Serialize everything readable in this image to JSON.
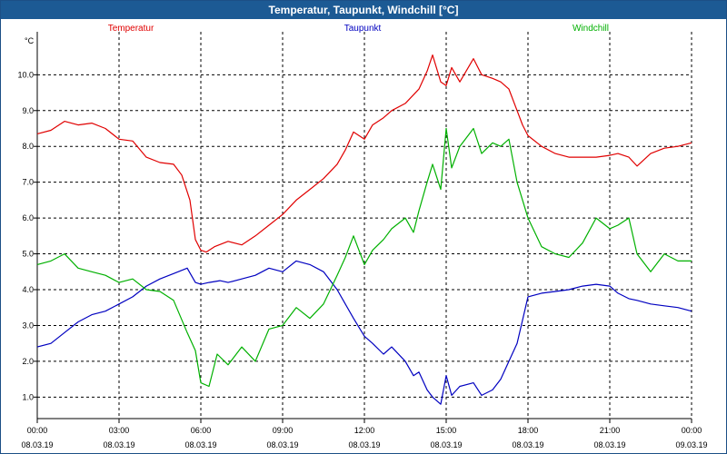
{
  "window": {
    "title": "Temperatur, Taupunkt, Windchill [°C]"
  },
  "chart_data": {
    "type": "line",
    "title": "Temperatur, Taupunkt, Windchill [°C]",
    "ylabel": "°C",
    "ylim": [
      0.4,
      11.2
    ],
    "xlim": [
      0,
      24
    ],
    "yticks": [
      "1.0",
      "2.0",
      "3.0",
      "4.0",
      "5.0",
      "6.0",
      "7.0",
      "8.0",
      "9.0",
      "10.0"
    ],
    "xticks": [
      {
        "time": "00:00",
        "date": "08.03.19"
      },
      {
        "time": "03:00",
        "date": "08.03.19"
      },
      {
        "time": "06:00",
        "date": "08.03.19"
      },
      {
        "time": "09:00",
        "date": "08.03.19"
      },
      {
        "time": "12:00",
        "date": "08.03.19"
      },
      {
        "time": "15:00",
        "date": "08.03.19"
      },
      {
        "time": "18:00",
        "date": "08.03.19"
      },
      {
        "time": "21:00",
        "date": "08.03.19"
      },
      {
        "time": "00:00",
        "date": "09.03.19"
      }
    ],
    "grid": true,
    "legend_position": "top",
    "series": [
      {
        "name": "Temperatur",
        "color": "#e00000",
        "x": [
          0,
          0.5,
          1,
          1.5,
          2,
          2.5,
          3,
          3.5,
          4,
          4.5,
          5,
          5.3,
          5.6,
          5.8,
          6,
          6.2,
          6.5,
          7,
          7.5,
          8,
          8.5,
          9,
          9.5,
          10,
          10.5,
          11,
          11.3,
          11.6,
          12,
          12.3,
          12.7,
          13,
          13.5,
          14,
          14.3,
          14.5,
          14.8,
          15,
          15.2,
          15.5,
          16,
          16.3,
          16.7,
          17,
          17.3,
          17.6,
          17.8,
          18,
          18.5,
          19,
          19.5,
          20,
          20.5,
          21,
          21.3,
          21.7,
          22,
          22.5,
          23,
          23.5,
          24
        ],
        "y": [
          8.35,
          8.45,
          8.7,
          8.6,
          8.65,
          8.5,
          8.2,
          8.15,
          7.7,
          7.55,
          7.5,
          7.2,
          6.5,
          5.4,
          5.1,
          5.05,
          5.2,
          5.35,
          5.25,
          5.5,
          5.8,
          6.1,
          6.5,
          6.8,
          7.1,
          7.5,
          7.9,
          8.4,
          8.2,
          8.6,
          8.8,
          9.0,
          9.2,
          9.6,
          10.1,
          10.55,
          9.8,
          9.7,
          10.2,
          9.8,
          10.45,
          10.0,
          9.9,
          9.8,
          9.6,
          9.0,
          8.6,
          8.3,
          8.0,
          7.8,
          7.7,
          7.7,
          7.7,
          7.75,
          7.8,
          7.7,
          7.45,
          7.8,
          7.95,
          8.0,
          8.1
        ]
      },
      {
        "name": "Taupunkt",
        "color": "#0000c0",
        "x": [
          0,
          0.5,
          1,
          1.5,
          2,
          2.5,
          3,
          3.5,
          4,
          4.5,
          5,
          5.5,
          5.8,
          6,
          6.3,
          6.7,
          7,
          7.5,
          8,
          8.5,
          9,
          9.5,
          10,
          10.5,
          11,
          11.3,
          11.6,
          12,
          12.3,
          12.7,
          13,
          13.5,
          13.8,
          14,
          14.3,
          14.5,
          14.8,
          15,
          15.2,
          15.5,
          16,
          16.3,
          16.7,
          17,
          17.3,
          17.6,
          18,
          18.5,
          19,
          19.5,
          20,
          20.5,
          21,
          21.3,
          21.7,
          22,
          22.5,
          23,
          23.5,
          24
        ],
        "y": [
          2.4,
          2.5,
          2.8,
          3.1,
          3.3,
          3.4,
          3.6,
          3.8,
          4.1,
          4.3,
          4.45,
          4.6,
          4.2,
          4.15,
          4.2,
          4.25,
          4.2,
          4.3,
          4.4,
          4.6,
          4.5,
          4.8,
          4.7,
          4.5,
          4.0,
          3.6,
          3.2,
          2.7,
          2.5,
          2.2,
          2.4,
          2.0,
          1.6,
          1.7,
          1.2,
          1.0,
          0.8,
          1.6,
          1.05,
          1.3,
          1.4,
          1.05,
          1.2,
          1.5,
          2.0,
          2.5,
          3.8,
          3.9,
          3.95,
          4.0,
          4.1,
          4.15,
          4.1,
          3.9,
          3.75,
          3.7,
          3.6,
          3.55,
          3.5,
          3.4
        ]
      },
      {
        "name": "Windchill",
        "color": "#00b000",
        "x": [
          0,
          0.5,
          1,
          1.5,
          2,
          2.5,
          3,
          3.5,
          4,
          4.5,
          5,
          5.5,
          5.8,
          6,
          6.3,
          6.6,
          7,
          7.5,
          8,
          8.5,
          9,
          9.5,
          10,
          10.5,
          11,
          11.3,
          11.6,
          12,
          12.3,
          12.7,
          13,
          13.5,
          13.8,
          14,
          14.3,
          14.5,
          14.8,
          15,
          15.2,
          15.5,
          16,
          16.3,
          16.7,
          17,
          17.3,
          17.6,
          18,
          18.5,
          19,
          19.5,
          20,
          20.5,
          21,
          21.3,
          21.7,
          22,
          22.5,
          23,
          23.5,
          24
        ],
        "y": [
          4.7,
          4.8,
          5.0,
          4.6,
          4.5,
          4.4,
          4.2,
          4.3,
          4.0,
          3.95,
          3.7,
          2.8,
          2.3,
          1.4,
          1.3,
          2.2,
          1.9,
          2.4,
          2.0,
          2.9,
          3.0,
          3.5,
          3.2,
          3.6,
          4.4,
          4.9,
          5.5,
          4.7,
          5.1,
          5.4,
          5.7,
          6.0,
          5.6,
          6.2,
          7.0,
          7.5,
          6.8,
          8.5,
          7.4,
          8.0,
          8.5,
          7.8,
          8.1,
          8.0,
          8.2,
          7.0,
          6.0,
          5.2,
          5.0,
          4.9,
          5.3,
          6.0,
          5.7,
          5.8,
          6.0,
          5.0,
          4.5,
          5.0,
          4.8,
          4.8
        ]
      }
    ]
  }
}
